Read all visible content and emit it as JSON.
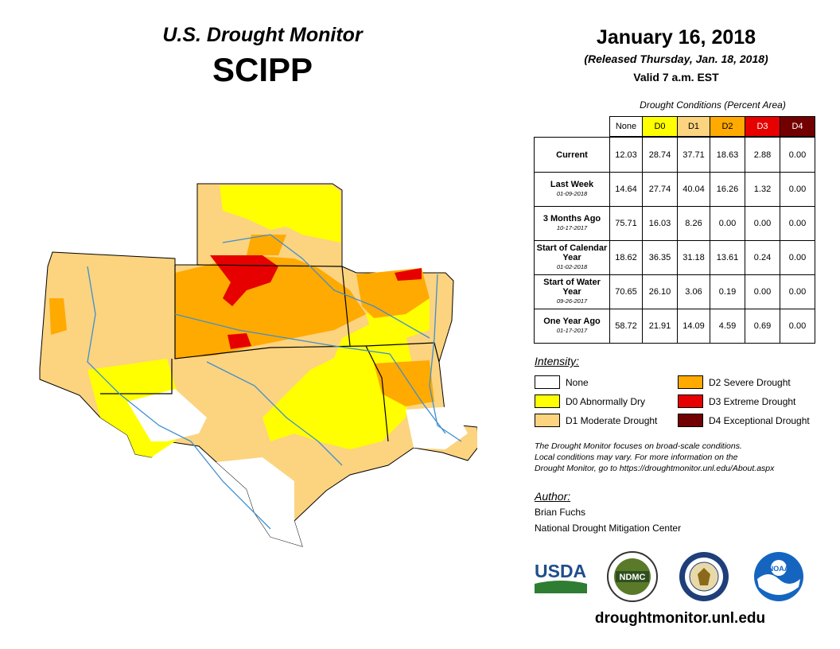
{
  "header": {
    "title": "U.S. Drought Monitor",
    "region": "SCIPP",
    "date": "January 16, 2018",
    "released": "(Released Thursday, Jan. 18, 2018)",
    "valid": "Valid 7 a.m. EST"
  },
  "table": {
    "caption": "Drought Conditions (Percent Area)",
    "columns": [
      {
        "label": "None",
        "color": "#ffffff",
        "text_color": "#000000"
      },
      {
        "label": "D0",
        "color": "#ffff00",
        "text_color": "#000000"
      },
      {
        "label": "D1",
        "color": "#fcd37f",
        "text_color": "#000000"
      },
      {
        "label": "D2",
        "color": "#ffaa00",
        "text_color": "#000000"
      },
      {
        "label": "D3",
        "color": "#e60000",
        "text_color": "#ffffff"
      },
      {
        "label": "D4",
        "color": "#730000",
        "text_color": "#ffffff"
      }
    ],
    "rows": [
      {
        "label": "Current",
        "sublabel": "",
        "values": [
          "12.03",
          "28.74",
          "37.71",
          "18.63",
          "2.88",
          "0.00"
        ]
      },
      {
        "label": "Last Week",
        "sublabel": "01-09-2018",
        "values": [
          "14.64",
          "27.74",
          "40.04",
          "16.26",
          "1.32",
          "0.00"
        ]
      },
      {
        "label": "3 Months Ago",
        "sublabel": "10-17-2017",
        "values": [
          "75.71",
          "16.03",
          "8.26",
          "0.00",
          "0.00",
          "0.00"
        ]
      },
      {
        "label": "Start of Calendar Year",
        "sublabel": "01-02-2018",
        "values": [
          "18.62",
          "36.35",
          "31.18",
          "13.61",
          "0.24",
          "0.00"
        ]
      },
      {
        "label": "Start of Water Year",
        "sublabel": "09-26-2017",
        "values": [
          "70.65",
          "26.10",
          "3.06",
          "0.19",
          "0.00",
          "0.00"
        ]
      },
      {
        "label": "One Year Ago",
        "sublabel": "01-17-2017",
        "values": [
          "58.72",
          "21.91",
          "14.09",
          "4.59",
          "0.69",
          "0.00"
        ]
      }
    ]
  },
  "legend": {
    "title": "Intensity:",
    "items": [
      {
        "label": "None",
        "color": "#ffffff"
      },
      {
        "label": "D0 Abnormally Dry",
        "color": "#ffff00"
      },
      {
        "label": "D1 Moderate Drought",
        "color": "#fcd37f"
      },
      {
        "label": "D2 Severe Drought",
        "color": "#ffaa00"
      },
      {
        "label": "D3 Extreme Drought",
        "color": "#e60000"
      },
      {
        "label": "D4 Exceptional Drought",
        "color": "#730000"
      }
    ]
  },
  "note": {
    "line1": "The Drought Monitor focuses on broad-scale conditions.",
    "line2": "Local conditions may vary. For more information on the",
    "line3": "Drought Monitor, go to https://droughtmonitor.unl.edu/About.aspx"
  },
  "author": {
    "title": "Author:",
    "name": "Brian Fuchs",
    "org": "National Drought Mitigation Center"
  },
  "logos": {
    "usda": "USDA",
    "ndmc": "NDMC",
    "noaa": "NOAA"
  },
  "website": "droughtmonitor.unl.edu",
  "map": {
    "colors": {
      "none": "#ffffff",
      "d0": "#ffff00",
      "d1": "#fcd37f",
      "d2": "#ffaa00",
      "d3": "#e60000",
      "river": "#3d8fd1",
      "border": "#000000"
    }
  }
}
